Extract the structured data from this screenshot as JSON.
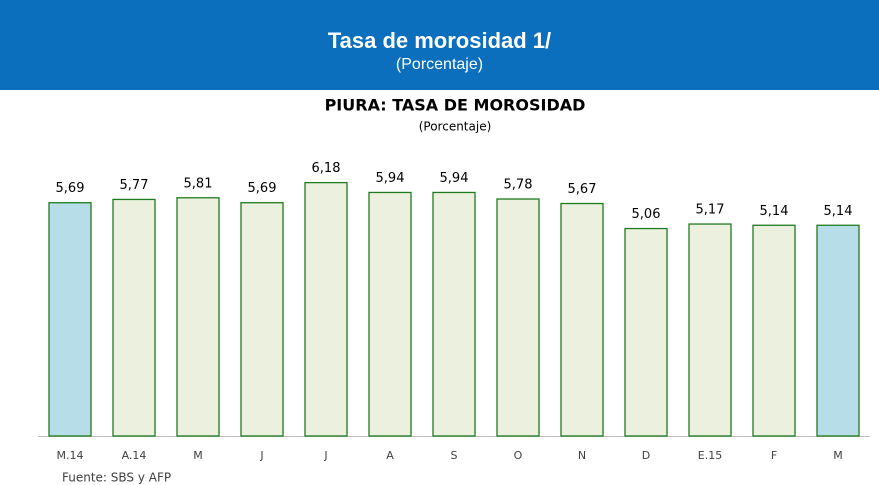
{
  "header": {
    "title": "Tasa de morosidad 1/",
    "subtitle": "(Porcentaje)"
  },
  "chart_data": {
    "type": "bar",
    "title": "PIURA: TASA DE MOROSIDAD",
    "subtitle": "(Porcentaje)",
    "categories": [
      "M.14",
      "A.14",
      "M",
      "J",
      "J",
      "A",
      "S",
      "O",
      "N",
      "D",
      "E.15",
      "F",
      "M"
    ],
    "values": [
      5.69,
      5.77,
      5.81,
      5.69,
      6.18,
      5.94,
      5.94,
      5.78,
      5.67,
      5.06,
      5.17,
      5.14,
      5.14
    ],
    "value_labels": [
      "5,69",
      "5,77",
      "5,81",
      "5,69",
      "6,18",
      "5,94",
      "5,94",
      "5,78",
      "5,67",
      "5,06",
      "5,17",
      "5,14",
      "5,14"
    ],
    "colors": [
      "#b7dde8",
      "#ebf1de",
      "#ebf1de",
      "#ebf1de",
      "#ebf1de",
      "#ebf1de",
      "#ebf1de",
      "#ebf1de",
      "#ebf1de",
      "#ebf1de",
      "#ebf1de",
      "#ebf1de",
      "#b7dde8"
    ],
    "edge_color": "#1e7b1e",
    "ylim": [
      0,
      7
    ],
    "source": "Fuente: SBS y AFP"
  }
}
